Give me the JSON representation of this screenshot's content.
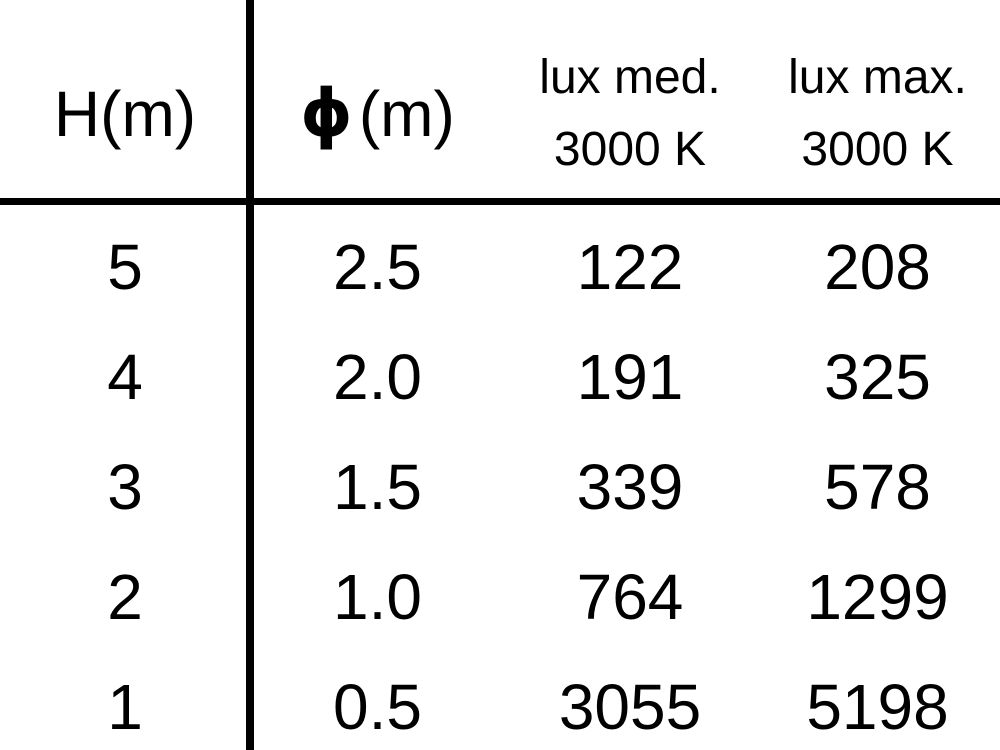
{
  "colors": {
    "background": "#ffffff",
    "text": "#000000",
    "rule": "#000000"
  },
  "table": {
    "columns": [
      {
        "label": "H(m)"
      },
      {
        "symbol": "ϕ",
        "unit": "(m)"
      },
      {
        "line1": "lux med.",
        "line2": "3000 K"
      },
      {
        "line1": "lux max.",
        "line2": "3000 K"
      }
    ],
    "rows": [
      {
        "h": "5",
        "phi": "2.5",
        "lux_med": "122",
        "lux_max": "208"
      },
      {
        "h": "4",
        "phi": "2.0",
        "lux_med": "191",
        "lux_max": "325"
      },
      {
        "h": "3",
        "phi": "1.5",
        "lux_med": "339",
        "lux_max": "578"
      },
      {
        "h": "2",
        "phi": "1.0",
        "lux_med": "764",
        "lux_max": "1299"
      },
      {
        "h": "1",
        "phi": "0.5",
        "lux_med": "3055",
        "lux_max": "5198"
      }
    ]
  },
  "chart_data": {
    "type": "table",
    "columns": [
      "H(m)",
      "ϕ(m)",
      "lux med. 3000 K",
      "lux max. 3000 K"
    ],
    "rows": [
      [
        5,
        2.5,
        122,
        208
      ],
      [
        4,
        2.0,
        191,
        325
      ],
      [
        3,
        1.5,
        339,
        578
      ],
      [
        2,
        1.0,
        764,
        1299
      ],
      [
        1,
        0.5,
        3055,
        5198
      ]
    ]
  }
}
